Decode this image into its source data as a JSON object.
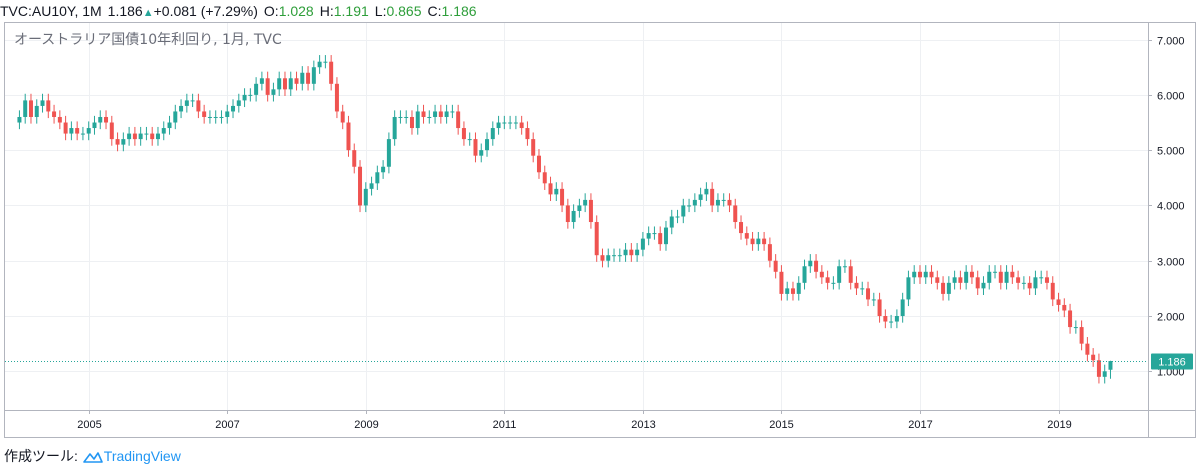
{
  "header": {
    "symbol": "TVC:AU10Y, 1M",
    "last": "1.186",
    "change": "+0.081 (+7.29%)",
    "o_label": "O:",
    "o_value": "1.028",
    "h_label": "H:",
    "h_value": "1.191",
    "l_label": "L:",
    "l_value": "0.865",
    "c_label": "C:",
    "c_value": "1.186"
  },
  "footer": {
    "label": "作成ツール:",
    "brand": "TradingView"
  },
  "colors": {
    "up": "#26a69a",
    "down": "#ef5350",
    "grid": "#eef0f3",
    "price_line": "#26a69a",
    "axis": "#787b86"
  },
  "chart_data": {
    "type": "candlestick",
    "title": "オーストラリア国債10年利回り, 1月, TVC",
    "interval": "1M",
    "xlabel": "",
    "ylabel": "",
    "ylim": [
      0.3,
      7.3
    ],
    "y_ticks": [
      "1.000",
      "2.000",
      "3.000",
      "4.000",
      "5.000",
      "6.000",
      "7.000"
    ],
    "x_ticks": [
      "2005",
      "2007",
      "2009",
      "2011",
      "2013",
      "2015",
      "2017",
      "2019"
    ],
    "x_range": [
      "2003-11",
      "2020-05"
    ],
    "last_price": 1.186,
    "last_price_label": "1.186",
    "monthly_close_approx": [
      {
        "year": 2004,
        "values": [
          5.6,
          5.9,
          5.6,
          5.8,
          5.9,
          5.7,
          5.6,
          5.5,
          5.3,
          5.4,
          5.3,
          5.3
        ]
      },
      {
        "year": 2005,
        "values": [
          5.4,
          5.5,
          5.6,
          5.5,
          5.2,
          5.1,
          5.2,
          5.3,
          5.2,
          5.3,
          5.3,
          5.2
        ]
      },
      {
        "year": 2006,
        "values": [
          5.3,
          5.4,
          5.5,
          5.7,
          5.8,
          5.9,
          5.9,
          5.7,
          5.6,
          5.6,
          5.6,
          5.6
        ]
      },
      {
        "year": 2007,
        "values": [
          5.7,
          5.8,
          5.9,
          6.0,
          6.0,
          6.2,
          6.3,
          6.0,
          6.1,
          6.3,
          6.1,
          6.3
        ]
      },
      {
        "year": 2008,
        "values": [
          6.2,
          6.4,
          6.2,
          6.5,
          6.6,
          6.6,
          6.2,
          5.7,
          5.5,
          5.0,
          4.7,
          4.0
        ]
      },
      {
        "year": 2009,
        "values": [
          4.3,
          4.4,
          4.6,
          4.7,
          5.2,
          5.6,
          5.6,
          5.6,
          5.4,
          5.7,
          5.6,
          5.6
        ]
      },
      {
        "year": 2010,
        "values": [
          5.7,
          5.6,
          5.7,
          5.7,
          5.4,
          5.2,
          5.2,
          4.9,
          5.0,
          5.2,
          5.4,
          5.5
        ]
      },
      {
        "year": 2011,
        "values": [
          5.5,
          5.5,
          5.5,
          5.4,
          5.2,
          4.9,
          4.6,
          4.4,
          4.2,
          4.3,
          4.0,
          3.7
        ]
      },
      {
        "year": 2012,
        "values": [
          3.9,
          4.0,
          4.1,
          3.7,
          3.1,
          3.0,
          3.1,
          3.1,
          3.1,
          3.2,
          3.1,
          3.2
        ]
      },
      {
        "year": 2013,
        "values": [
          3.4,
          3.5,
          3.5,
          3.3,
          3.6,
          3.8,
          3.8,
          4.0,
          4.0,
          4.1,
          4.2,
          4.3
        ]
      },
      {
        "year": 2014,
        "values": [
          4.0,
          4.1,
          4.1,
          4.0,
          3.7,
          3.5,
          3.4,
          3.3,
          3.4,
          3.3,
          3.0,
          2.8
        ]
      },
      {
        "year": 2015,
        "values": [
          2.4,
          2.5,
          2.4,
          2.6,
          2.9,
          3.0,
          2.8,
          2.7,
          2.6,
          2.6,
          2.9,
          2.9
        ]
      },
      {
        "year": 2016,
        "values": [
          2.6,
          2.5,
          2.5,
          2.3,
          2.3,
          2.0,
          1.9,
          1.9,
          2.0,
          2.3,
          2.7,
          2.8
        ]
      },
      {
        "year": 2017,
        "values": [
          2.7,
          2.8,
          2.7,
          2.6,
          2.4,
          2.6,
          2.7,
          2.6,
          2.8,
          2.7,
          2.5,
          2.6
        ]
      },
      {
        "year": 2018,
        "values": [
          2.8,
          2.8,
          2.6,
          2.8,
          2.7,
          2.6,
          2.6,
          2.5,
          2.7,
          2.7,
          2.6,
          2.3
        ]
      },
      {
        "year": 2019,
        "values": [
          2.2,
          2.1,
          1.8,
          1.8,
          1.5,
          1.3,
          1.2,
          0.9,
          1.0,
          1.1
        ]
      }
    ]
  }
}
